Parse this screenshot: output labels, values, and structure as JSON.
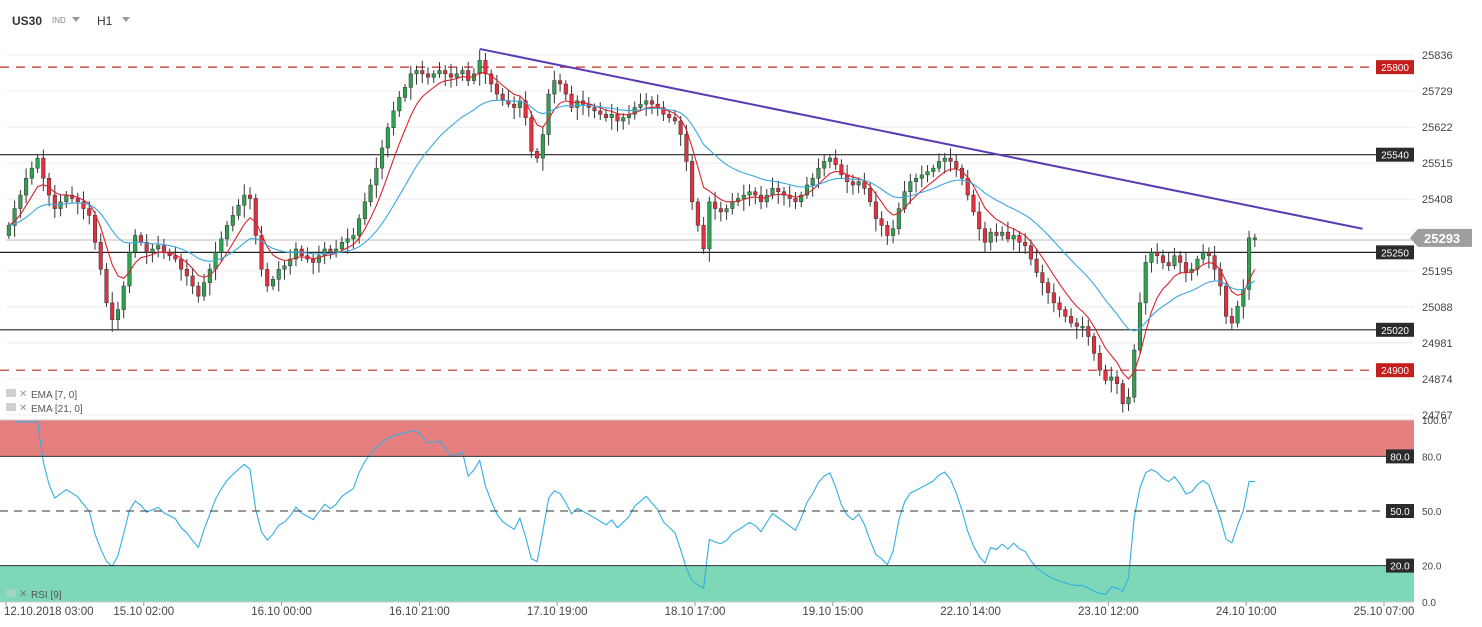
{
  "header": {
    "symbol": "US30",
    "symbol_tag": "IND",
    "timeframe": "H1"
  },
  "indicators": {
    "ema1_label": "EMA [7, 0]",
    "ema2_label": "EMA [21, 0]",
    "rsi_label": "RSI [9]"
  },
  "colors": {
    "bull": "#2fa14f",
    "bear": "#e0313f",
    "ema_fast": "#d9232d",
    "ema_slow": "#3aa8e0",
    "trendline": "#5b3bb5",
    "resistance_dashed": "#c62828",
    "rsi_line": "#33aee3",
    "rsi_overbought_zone": "#e67f7f",
    "rsi_oversold_zone": "#7ed8b8"
  },
  "chart_data": {
    "type": "candlestick",
    "price_axis": {
      "range": [
        24767,
        25836
      ],
      "ticks": [
        25836,
        25729,
        25622,
        25515,
        25408,
        25304,
        25195,
        25088,
        24981,
        24874,
        24767
      ]
    },
    "current_price": 25293,
    "levels": [
      {
        "value": 25800,
        "label": "25800",
        "style": "dashed",
        "color": "#c62828"
      },
      {
        "value": 25540,
        "label": "25540",
        "style": "solid",
        "color": "#222222"
      },
      {
        "value": 25250,
        "label": "25250",
        "style": "solid",
        "color": "#222222"
      },
      {
        "value": 25020,
        "label": "25020",
        "style": "solid",
        "color": "#222222"
      },
      {
        "value": 24900,
        "label": "24900",
        "style": "dashed",
        "color": "#c62828"
      }
    ],
    "trendline": {
      "start_index": 82,
      "start_price": 25854,
      "end_index": 238,
      "end_price": 25320
    },
    "x_axis": {
      "labels": [
        {
          "index": 0,
          "text": "12.10.2018  03:00"
        },
        {
          "index": 24,
          "text": "15.10  02:00"
        },
        {
          "index": 48,
          "text": "16.10  00:00"
        },
        {
          "index": 72,
          "text": "16.10  21:00"
        },
        {
          "index": 96,
          "text": "17.10  19:00"
        },
        {
          "index": 120,
          "text": "18.10  17:00"
        },
        {
          "index": 144,
          "text": "19.10  15:00"
        },
        {
          "index": 168,
          "text": "22.10  14:00"
        },
        {
          "index": 192,
          "text": "23.10  12:00"
        },
        {
          "index": 216,
          "text": "24.10  10:00"
        },
        {
          "index": 240,
          "text": "25.10  07:00"
        }
      ]
    },
    "closes": [
      25330,
      25380,
      25420,
      25470,
      25500,
      25530,
      25470,
      25420,
      25380,
      25400,
      25420,
      25410,
      25400,
      25380,
      25360,
      25280,
      25200,
      25100,
      25050,
      25080,
      25150,
      25250,
      25300,
      25280,
      25250,
      25260,
      25270,
      25250,
      25240,
      25230,
      25200,
      25180,
      25150,
      25120,
      25160,
      25200,
      25250,
      25290,
      25330,
      25360,
      25390,
      25420,
      25410,
      25300,
      25200,
      25150,
      25170,
      25200,
      25210,
      25230,
      25260,
      25240,
      25230,
      25220,
      25240,
      25260,
      25250,
      25260,
      25280,
      25290,
      25300,
      25350,
      25400,
      25450,
      25500,
      25560,
      25620,
      25670,
      25710,
      25740,
      25780,
      25790,
      25780,
      25770,
      25780,
      25790,
      25780,
      25770,
      25780,
      25790,
      25760,
      25780,
      25820,
      25780,
      25750,
      25720,
      25700,
      25690,
      25680,
      25700,
      25650,
      25550,
      25530,
      25600,
      25720,
      25760,
      25750,
      25720,
      25680,
      25700,
      25690,
      25680,
      25670,
      25660,
      25650,
      25660,
      25640,
      25650,
      25660,
      25680,
      25690,
      25700,
      25690,
      25680,
      25660,
      25650,
      25640,
      25600,
      25520,
      25400,
      25330,
      25260,
      25400,
      25380,
      25370,
      25380,
      25400,
      25410,
      25420,
      25430,
      25420,
      25400,
      25420,
      25440,
      25430,
      25420,
      25410,
      25400,
      25420,
      25450,
      25470,
      25500,
      25520,
      25530,
      25510,
      25480,
      25460,
      25450,
      25460,
      25440,
      25400,
      25350,
      25330,
      25300,
      25320,
      25380,
      25430,
      25460,
      25470,
      25480,
      25490,
      25500,
      25520,
      25530,
      25520,
      25500,
      25470,
      25420,
      25370,
      25320,
      25280,
      25310,
      25300,
      25310,
      25290,
      25300,
      25280,
      25270,
      25230,
      25190,
      25160,
      25130,
      25100,
      25080,
      25060,
      25040,
      25030,
      25030,
      25000,
      24950,
      24900,
      24870,
      24880,
      24860,
      24800,
      24820,
      24960,
      25100,
      25220,
      25250,
      25240,
      25220,
      25210,
      25240,
      25220,
      25190,
      25200,
      25230,
      25250,
      25240,
      25200,
      25150,
      25060,
      25040,
      25090,
      25140,
      25293,
      25293
    ],
    "rsi": {
      "range": [
        0,
        100
      ],
      "levels": [
        {
          "value": 80.0,
          "label": "80.0"
        },
        {
          "value": 50.0,
          "label": "50.0"
        },
        {
          "value": 20.0,
          "label": "20.0"
        }
      ],
      "axis_ticks": [
        "100.0",
        "80.0",
        "50.0",
        "20.0",
        "0.0"
      ]
    }
  }
}
